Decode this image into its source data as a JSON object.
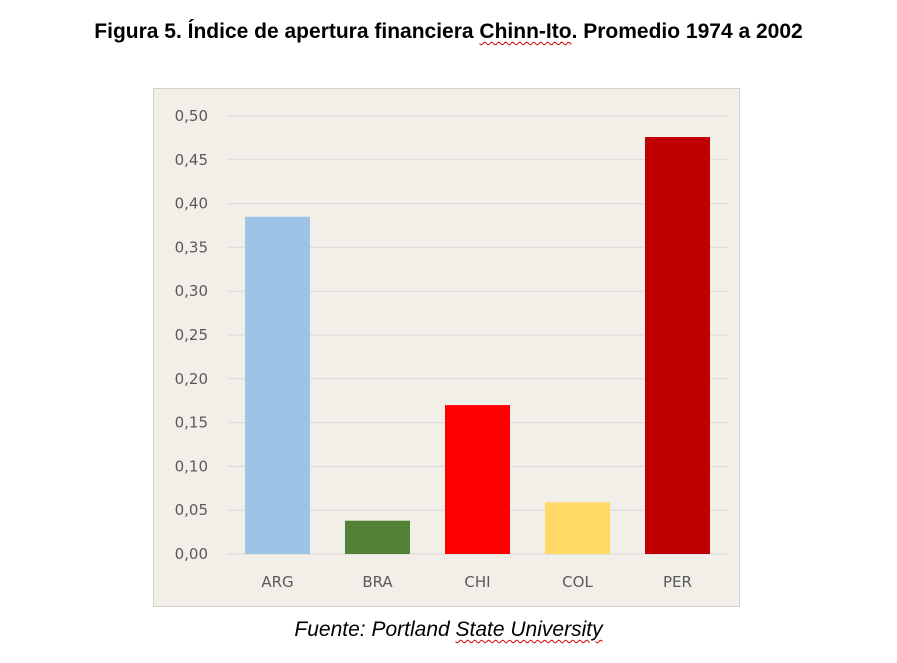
{
  "title": {
    "prefix": "Figura 5. Índice de apertura financiera ",
    "flagged": "Chinn-Ito",
    "suffix": ". Promedio 1974 a 2002"
  },
  "source": {
    "prefix": "Fuente: Portland ",
    "flagged": "State University"
  },
  "chart_data": {
    "type": "bar",
    "title": "Figura 5. Índice de apertura financiera Chinn-Ito. Promedio 1974 a 2002",
    "categories": [
      "ARG",
      "BRA",
      "CHI",
      "COL",
      "PER"
    ],
    "values": [
      0.385,
      0.038,
      0.17,
      0.059,
      0.476
    ],
    "bar_colors": [
      "#9dc3e6",
      "#548235",
      "#ff0000",
      "#ffd966",
      "#c00000"
    ],
    "yticks": [
      "0,00",
      "0,05",
      "0,10",
      "0,15",
      "0,20",
      "0,25",
      "0,30",
      "0,35",
      "0,40",
      "0,45",
      "0,50"
    ],
    "ylim": [
      0,
      0.5
    ],
    "xlabel": "",
    "ylabel": "",
    "grid": true,
    "legend": "none",
    "background": "#f2efe9",
    "gridline_color": "#d9d9d9"
  }
}
